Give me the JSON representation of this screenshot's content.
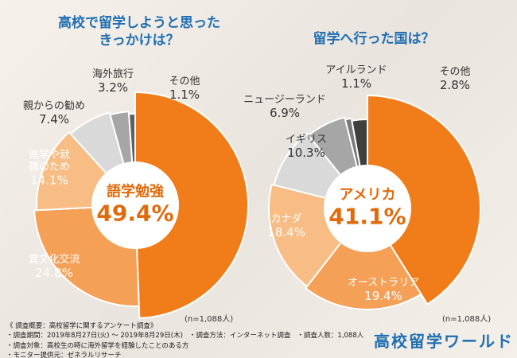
{
  "chart_data": [
    {
      "type": "donut",
      "title": [
        "高校で留学しようと思った",
        "きっかけは？"
      ],
      "title_color": "#1f6fb2",
      "categories": [
        "語学勉強",
        "異文化交流",
        "進学や就職のため",
        "親からの勧め",
        "海外旅行",
        "その他"
      ],
      "values": [
        49.4,
        24.8,
        14.1,
        7.4,
        3.2,
        1.1
      ],
      "value_labels": [
        "49.4%",
        "24.8%",
        "14.1%",
        "7.4%",
        "3.2%",
        "1.1%"
      ],
      "colors": [
        "#f07d1a",
        "#f5a057",
        "#f7bd85",
        "#d9d9d9",
        "#a6a6a6",
        "#5f5f5f"
      ],
      "note": "(n=1,088人)"
    },
    {
      "type": "donut",
      "title": [
        "留学へ行った国は？"
      ],
      "title_color": "#1f6fb2",
      "categories": [
        "アメリカ",
        "オーストラリア",
        "カナダ",
        "イギリス",
        "ニュージーランド",
        "アイルランド",
        "その他"
      ],
      "values": [
        41.1,
        19.4,
        18.4,
        10.3,
        6.9,
        1.1,
        2.8
      ],
      "value_labels": [
        "41.1%",
        "19.4%",
        "18.4%",
        "10.3%",
        "6.9%",
        "1.1%",
        "2.8%"
      ],
      "colors": [
        "#f07d1a",
        "#f5a057",
        "#f7bd85",
        "#d9d9d9",
        "#a6a6a6",
        "#7a7a7a",
        "#3f3f3f"
      ],
      "note": "(n=1,088人)"
    }
  ],
  "survey": {
    "heading": "《 調査概要：高校留学に関するアンケート調査》",
    "items": [
      "・調査期間：2019年8月27日(火) ～ 2019年8月29日(木)",
      "・調査方法：インターネット調査",
      "・調査人数：1,088人",
      "・調査対象：高校生の時に海外留学を経験したことのある方",
      "・モニター提供元：ゼネラルリサーチ"
    ]
  },
  "brand": "高校留学ワールド"
}
